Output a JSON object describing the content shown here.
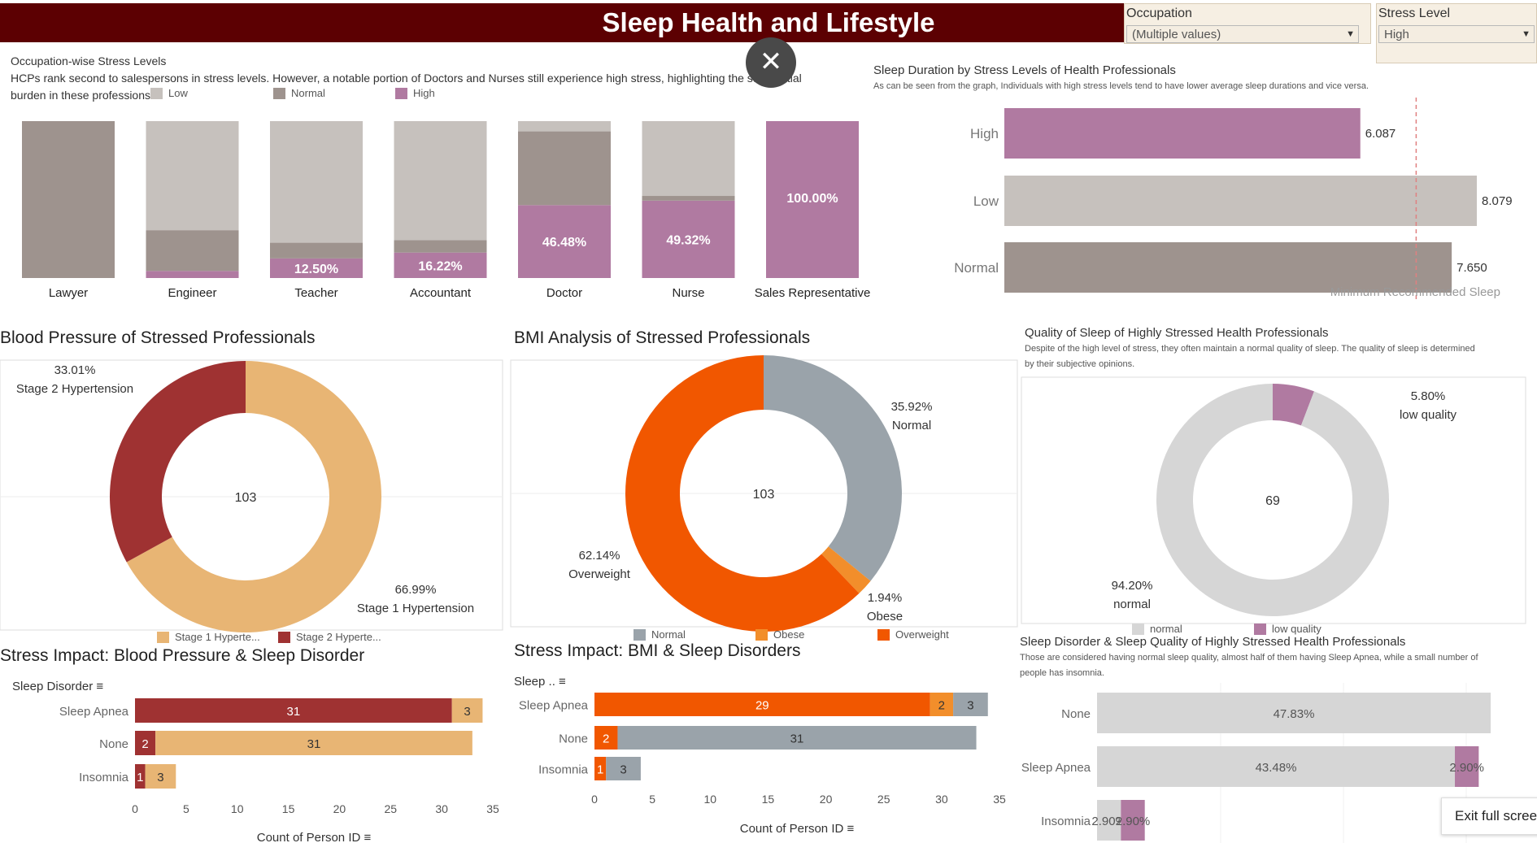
{
  "header": {
    "title": "Sleep Health and Lifestyle"
  },
  "filters": {
    "occupation": {
      "label": "Occupation",
      "value": "(Multiple values)"
    },
    "stress": {
      "label": "Stress Level",
      "value": "High"
    }
  },
  "controls": {
    "exit_label": "Exit full screen"
  },
  "colors": {
    "header": "#5c0002",
    "low": "#c6c1bd",
    "normal": "#9e938e",
    "high": "#b07aa1",
    "stage1": "#e8b574",
    "stage2": "#9f3232",
    "bmi_normal": "#9aa3aa",
    "obese": "#f28e2b",
    "overweight": "#f15700",
    "quality_normal": "#d6d6d6",
    "quality_low": "#b07aa1"
  },
  "chart_data": [
    {
      "id": "occupation",
      "type": "bar",
      "stacked": true,
      "percent": true,
      "title": "Occupation-wise Stress Levels",
      "subtitle_lines": [
        "HCPs rank second to salespersons in stress levels. However, a notable portion of Doctors and Nurses still experience high stress, highlighting the substantial",
        "burden in these professions."
      ],
      "legend": [
        "Low",
        "Normal",
        "High"
      ],
      "categories": [
        "Lawyer",
        "Engineer",
        "Teacher",
        "Accountant",
        "Doctor",
        "Nurse",
        "Sales Representative"
      ],
      "series": [
        {
          "name": "High",
          "values": [
            0,
            4.5,
            12.5,
            16.22,
            46.48,
            49.32,
            100
          ]
        },
        {
          "name": "Normal",
          "values": [
            100,
            26,
            10,
            8,
            47,
            3,
            0
          ]
        },
        {
          "name": "Low",
          "values": [
            0,
            69.5,
            77.5,
            75.78,
            6.52,
            47.68,
            0
          ]
        }
      ],
      "labels": [
        "",
        "",
        "12.50%",
        "16.22%",
        "46.48%",
        "49.32%",
        "100.00%"
      ]
    },
    {
      "id": "sleepdur",
      "type": "bar",
      "orientation": "horizontal",
      "title": "Sleep Duration by Stress Levels of Health Professionals",
      "subtitle": "As can be seen from the graph, Individuals with high stress levels tend to have lower average sleep durations and vice versa.",
      "categories": [
        "High",
        "Low",
        "Normal"
      ],
      "values": [
        6.087,
        8.079,
        7.65
      ],
      "labels": [
        "6.087",
        "8.079",
        "7.650"
      ],
      "reference_line": {
        "value": 7,
        "label": "Minimum Recommended Sleep"
      },
      "xlim": [
        0,
        8.4
      ]
    },
    {
      "id": "bp",
      "type": "pie",
      "donut": true,
      "title": "Blood Pressure of Stressed Professionals",
      "center": "103",
      "slices": [
        {
          "name": "Stage 1 Hypertension",
          "value": 66.99,
          "label": "66.99%"
        },
        {
          "name": "Stage 2 Hypertension",
          "value": 33.01,
          "label": "33.01%"
        }
      ],
      "legend": [
        "Stage 1 Hyperte...",
        "Stage 2 Hyperte..."
      ]
    },
    {
      "id": "bmi",
      "type": "pie",
      "donut": true,
      "title": "BMI Analysis of Stressed Professionals",
      "center": "103",
      "slices": [
        {
          "name": "Normal",
          "value": 35.92,
          "label": "35.92%"
        },
        {
          "name": "Obese",
          "value": 1.94,
          "label": "1.94%"
        },
        {
          "name": "Overweight",
          "value": 62.14,
          "label": "62.14%"
        }
      ],
      "legend": [
        "Normal",
        "Obese",
        "Overweight"
      ]
    },
    {
      "id": "quality",
      "type": "pie",
      "donut": true,
      "title": "Quality of Sleep of Highly Stressed Health Professionals",
      "subtitle_lines": [
        "Despite of the high level of stress, they often maintain a normal quality of sleep. The quality of sleep is determined",
        "by their subjective opinions."
      ],
      "center": "69",
      "slices": [
        {
          "name": "low quality",
          "value": 5.8,
          "label": "5.80%"
        },
        {
          "name": "normal",
          "value": 94.2,
          "label": "94.20%"
        }
      ],
      "legend": [
        "normal",
        "low quality"
      ]
    },
    {
      "id": "bpsleep",
      "type": "bar",
      "orientation": "horizontal",
      "stacked": true,
      "title": "Stress Impact: Blood Pressure & Sleep Disorder",
      "ylabel": "Sleep Disorder",
      "xlabel": "Count of Person ID",
      "categories": [
        "Sleep Apnea",
        "None",
        "Insomnia"
      ],
      "series": [
        {
          "name": "Stage 2 Hypertension",
          "values": [
            31,
            2,
            1
          ]
        },
        {
          "name": "Stage 1 Hypertension",
          "values": [
            3,
            31,
            3
          ]
        }
      ],
      "ticks": [
        0,
        5,
        10,
        15,
        20,
        25,
        30,
        35
      ],
      "xlim": [
        0,
        35
      ]
    },
    {
      "id": "bmisleep",
      "type": "bar",
      "orientation": "horizontal",
      "stacked": true,
      "title": "Stress Impact: BMI & Sleep Disorders",
      "ylabel": "Sleep ..",
      "xlabel": "Count of Person ID",
      "categories": [
        "Sleep Apnea",
        "None",
        "Insomnia"
      ],
      "series": [
        {
          "name": "Overweight",
          "values": [
            29,
            2,
            1
          ]
        },
        {
          "name": "Obese",
          "values": [
            2,
            0,
            0
          ]
        },
        {
          "name": "Normal",
          "values": [
            3,
            31,
            3
          ]
        }
      ],
      "ticks": [
        0,
        5,
        10,
        15,
        20,
        25,
        30,
        35
      ],
      "xlim": [
        0,
        35
      ]
    },
    {
      "id": "disorderquality",
      "type": "bar",
      "orientation": "horizontal",
      "stacked": true,
      "title": "Sleep Disorder & Sleep Quality of Highly Stressed Health Professionals",
      "subtitle_lines": [
        "Those are considered having normal sleep quality, almost half of them having Sleep Apnea, while a small number of",
        "people has insomnia."
      ],
      "categories": [
        "None",
        "Sleep Apnea",
        "Insomnia"
      ],
      "series": [
        {
          "name": "normal",
          "values": [
            47.83,
            43.48,
            2.9
          ]
        },
        {
          "name": "low quality",
          "values": [
            0,
            2.9,
            2.9
          ]
        }
      ],
      "labels": [
        [
          "47.83%",
          ""
        ],
        [
          "43.48%",
          "2.90%"
        ],
        [
          "2.90%",
          "2.90%"
        ]
      ],
      "xlim": [
        0,
        50
      ]
    }
  ]
}
